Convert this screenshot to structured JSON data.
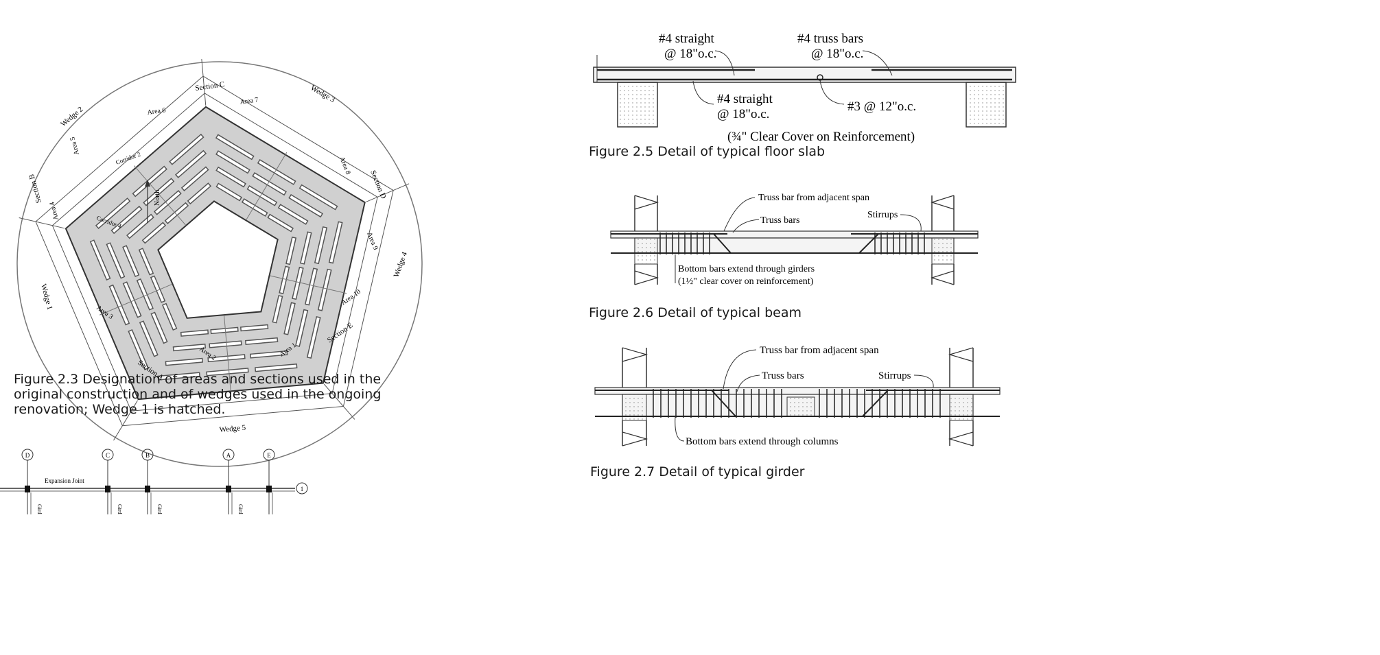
{
  "fig23": {
    "caption_lines": [
      "Figure 2.3  Designation of areas and sections used in the",
      "original construction and of wedges used in the ongoing",
      "renovation; Wedge 1 is hatched."
    ],
    "labels": {
      "section_c": "Section C",
      "section_d": "Section D",
      "section_e": "Section E",
      "section_a": "Section A",
      "section_b": "Section B",
      "area_1": "Area 1",
      "area_2": "Area 2",
      "area_3": "Area 3",
      "area_4": "Area 4",
      "area_5": "Area 5",
      "area_6": "Area 6",
      "area_7": "Area 7",
      "area_8": "Area 8",
      "area_9": "Area 9",
      "area_10": "Area 10",
      "wedge_1": "Wedge 1",
      "wedge_2": "Wedge 2",
      "wedge_3": "Wedge 3",
      "wedge_4": "Wedge 4",
      "wedge_5": "Wedge 5",
      "corridor_2": "Corridor 2",
      "corridor_4": "Corridor 4",
      "north": "North"
    }
  },
  "grid_plan": {
    "markers": [
      "D",
      "C",
      "B",
      "A",
      "E",
      "1"
    ],
    "expansion_joint": "Expansion Joint",
    "girder_label": "Gird"
  },
  "fig25": {
    "caption": "Figure 2.5  Detail of typical floor slab",
    "label_straight_top_1": "#4 straight",
    "label_straight_top_2": "@ 18\"o.c.",
    "label_truss_1": "#4 truss bars",
    "label_truss_2": "@ 18\"o.c.",
    "label_straight_bot_1": "#4 straight",
    "label_straight_bot_2": "@ 18\"o.c.",
    "label_temp": "#3 @ 12\"o.c.",
    "label_cover": "(¾\" Clear Cover on Reinforcement)"
  },
  "fig26": {
    "caption": "Figure 2.6  Detail of typical beam",
    "label_truss_adjacent": "Truss bar from adjacent span",
    "label_truss_bars": "Truss bars",
    "label_stirrups": "Stirrups",
    "label_bottom_1": "Bottom bars extend through girders",
    "label_bottom_2": "(1½\" clear cover on reinforcement)"
  },
  "fig27": {
    "caption": "Figure 2.7  Detail of typical girder",
    "label_truss_adjacent": "Truss bar from adjacent span",
    "label_truss_bars": "Truss bars",
    "label_stirrups": "Stirrups",
    "label_bottom": "Bottom bars extend through columns"
  },
  "colors": {
    "ink": "#1a1a1a",
    "hatch_fill": "#d0d0d0",
    "concrete": "#f4f4f4"
  }
}
